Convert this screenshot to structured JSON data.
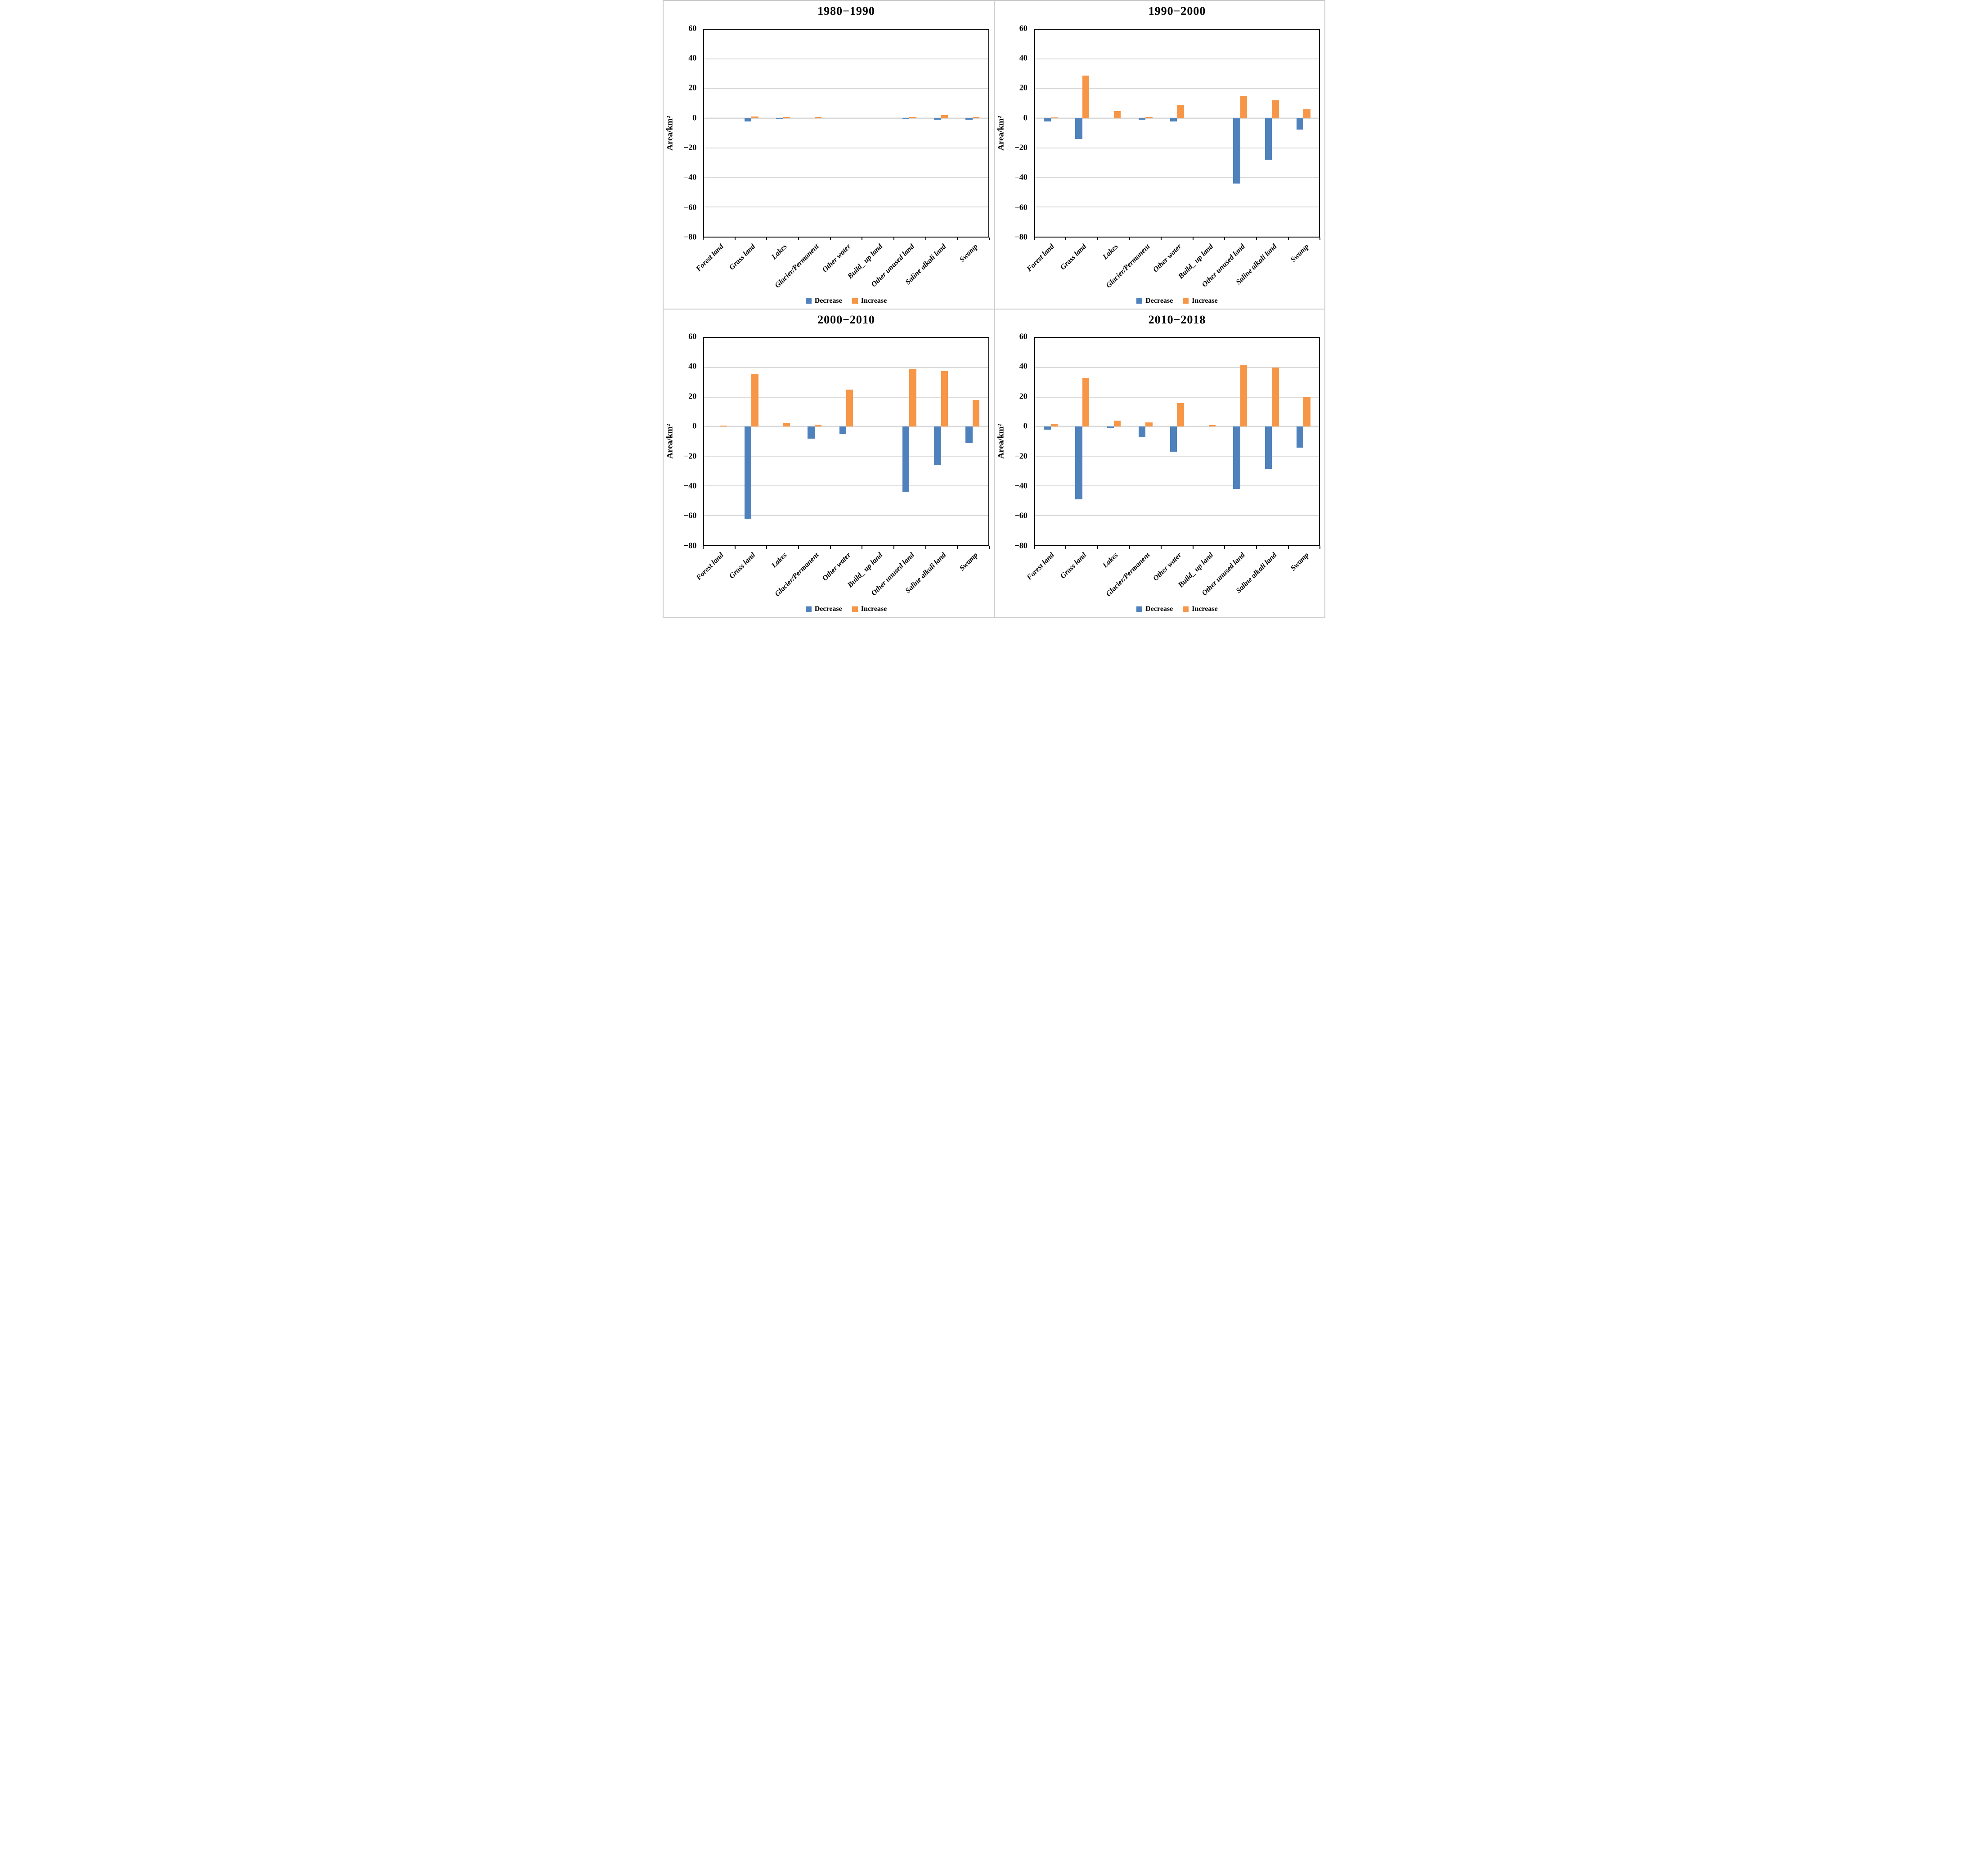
{
  "figure": {
    "kind": "four-panel grouped bar chart of land-use area change",
    "background": "#ffffff",
    "frame_border_color": "#c9c9c9"
  },
  "colors": {
    "decrease": "#4F81BD",
    "increase": "#F79646",
    "gridline": "#D9D9D9",
    "zero_line": "#D9D9D9",
    "plot_border": "#000000",
    "text": "#000000"
  },
  "categories": [
    "Forest land",
    "Grass land",
    "Lakes",
    "Glacier/Permanent",
    "Other water",
    "Build_ up land",
    "Other unused land",
    "Saline alkali land",
    "Swamp"
  ],
  "chart_data": [
    {
      "type": "bar",
      "title": "1980−1990",
      "ylabel": "Area/km²",
      "ylim": [
        -80,
        60
      ],
      "yticks": [
        60,
        40,
        20,
        0,
        -20,
        -40,
        -60,
        -80
      ],
      "grid": true,
      "legend_position": "bottom",
      "categories": [
        "Forest land",
        "Grass land",
        "Lakes",
        "Glacier/Permanent",
        "Other water",
        "Build_ up land",
        "Other unused land",
        "Saline alkali land",
        "Swamp"
      ],
      "series": [
        {
          "name": "Decrease",
          "color": "#4F81BD",
          "values": [
            0,
            -2.2,
            -0.7,
            0,
            0,
            0,
            -0.6,
            -1,
            -0.9
          ]
        },
        {
          "name": "Increase",
          "color": "#F79646",
          "values": [
            0,
            1.2,
            0.8,
            0.9,
            0,
            0,
            0.9,
            2.1,
            1
          ]
        }
      ]
    },
    {
      "type": "bar",
      "title": "1990−2000",
      "ylabel": "Area/km²",
      "ylim": [
        -80,
        60
      ],
      "yticks": [
        60,
        40,
        20,
        0,
        -20,
        -40,
        -60,
        -80
      ],
      "grid": true,
      "legend_position": "bottom",
      "categories": [
        "Forest land",
        "Grass land",
        "Lakes",
        "Glacier/Permanent",
        "Other water",
        "Build_ up land",
        "Other unused land",
        "Saline alkali land",
        "Swamp"
      ],
      "series": [
        {
          "name": "Decrease",
          "color": "#4F81BD",
          "values": [
            -2,
            -14,
            0,
            -1,
            -2,
            0,
            -44,
            -28,
            -7.5
          ]
        },
        {
          "name": "Increase",
          "color": "#F79646",
          "values": [
            0.5,
            29,
            5,
            1,
            9,
            0,
            15,
            12,
            6
          ]
        }
      ]
    },
    {
      "type": "bar",
      "title": "2000−2010",
      "ylabel": "Area/km²",
      "ylim": [
        -80,
        60
      ],
      "yticks": [
        60,
        40,
        20,
        0,
        -20,
        -40,
        -60,
        -80
      ],
      "grid": true,
      "legend_position": "bottom",
      "categories": [
        "Forest land",
        "Grass land",
        "Lakes",
        "Glacier/Permanent",
        "Other water",
        "Build_ up land",
        "Other unused land",
        "Saline alkali land",
        "Swamp"
      ],
      "series": [
        {
          "name": "Decrease",
          "color": "#4F81BD",
          "values": [
            0,
            -62,
            0,
            -8,
            -5,
            0,
            -44,
            -26,
            -11
          ]
        },
        {
          "name": "Increase",
          "color": "#F79646",
          "values": [
            0.7,
            35.5,
            2.5,
            1.5,
            25,
            0,
            39,
            37.5,
            18
          ]
        }
      ]
    },
    {
      "type": "bar",
      "title": "2010−2018",
      "ylabel": "Area/km²",
      "ylim": [
        -80,
        60
      ],
      "yticks": [
        60,
        40,
        20,
        0,
        -20,
        -40,
        -60,
        -80
      ],
      "grid": true,
      "legend_position": "bottom",
      "categories": [
        "Forest land",
        "Grass land",
        "Lakes",
        "Glacier/Permanent",
        "Other water",
        "Build_ up land",
        "Other unused land",
        "Saline alkali land",
        "Swamp"
      ],
      "series": [
        {
          "name": "Decrease",
          "color": "#4F81BD",
          "values": [
            -2,
            -49,
            -1,
            -7,
            -17,
            0,
            -42,
            -28.5,
            -14
          ]
        },
        {
          "name": "Increase",
          "color": "#F79646",
          "values": [
            2,
            33,
            4,
            3,
            16,
            1,
            41.5,
            40,
            20
          ]
        }
      ]
    }
  ]
}
